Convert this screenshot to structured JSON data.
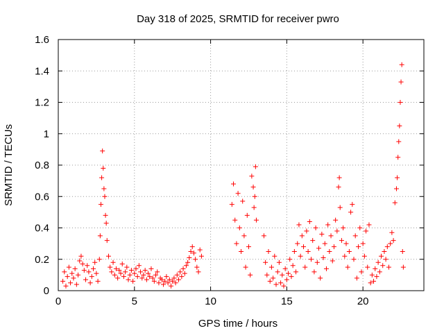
{
  "chart_data": {
    "type": "scatter",
    "title": "Day 318 of 2025, SRMTID for receiver pwro",
    "xlabel": "GPS time / hours",
    "ylabel": "SRMTID / TECUs",
    "xlim": [
      0,
      24
    ],
    "ylim": [
      0,
      1.6
    ],
    "x_ticks": [
      0,
      5,
      10,
      15,
      20
    ],
    "y_ticks": [
      0,
      0.2,
      0.4,
      0.6,
      0.8,
      1,
      1.2,
      1.4,
      1.6
    ],
    "x_tick_labels": [
      "0",
      "5",
      "10",
      "15",
      "20"
    ],
    "y_tick_labels": [
      "0",
      "0.2",
      "0.4",
      "0.6",
      "0.8",
      "1",
      "1.2",
      "1.4",
      "1.6"
    ],
    "grid": true,
    "marker": "+",
    "color": "#ff0000",
    "series": [
      {
        "name": "SRMTID",
        "points": [
          [
            0.3,
            0.06
          ],
          [
            0.4,
            0.12
          ],
          [
            0.5,
            0.03
          ],
          [
            0.6,
            0.09
          ],
          [
            0.7,
            0.15
          ],
          [
            0.8,
            0.05
          ],
          [
            0.9,
            0.11
          ],
          [
            1.0,
            0.08
          ],
          [
            1.1,
            0.14
          ],
          [
            1.2,
            0.04
          ],
          [
            1.3,
            0.1
          ],
          [
            1.4,
            0.19
          ],
          [
            1.5,
            0.22
          ],
          [
            1.6,
            0.17
          ],
          [
            1.7,
            0.13
          ],
          [
            1.8,
            0.07
          ],
          [
            1.9,
            0.16
          ],
          [
            2.0,
            0.12
          ],
          [
            2.1,
            0.05
          ],
          [
            2.2,
            0.09
          ],
          [
            2.3,
            0.14
          ],
          [
            2.4,
            0.18
          ],
          [
            2.5,
            0.11
          ],
          [
            2.6,
            0.06
          ],
          [
            2.7,
            0.2
          ],
          [
            2.75,
            0.35
          ],
          [
            2.8,
            0.55
          ],
          [
            2.85,
            0.72
          ],
          [
            2.9,
            0.89
          ],
          [
            2.95,
            0.78
          ],
          [
            3.0,
            0.65
          ],
          [
            3.05,
            0.6
          ],
          [
            3.1,
            0.48
          ],
          [
            3.15,
            0.43
          ],
          [
            3.2,
            0.32
          ],
          [
            3.3,
            0.22
          ],
          [
            3.4,
            0.15
          ],
          [
            3.5,
            0.12
          ],
          [
            3.6,
            0.18
          ],
          [
            3.7,
            0.1
          ],
          [
            3.8,
            0.14
          ],
          [
            3.9,
            0.08
          ],
          [
            4.0,
            0.13
          ],
          [
            4.1,
            0.11
          ],
          [
            4.2,
            0.17
          ],
          [
            4.3,
            0.09
          ],
          [
            4.4,
            0.12
          ],
          [
            4.5,
            0.15
          ],
          [
            4.6,
            0.07
          ],
          [
            4.7,
            0.1
          ],
          [
            4.8,
            0.13
          ],
          [
            4.9,
            0.06
          ],
          [
            5.0,
            0.11
          ],
          [
            5.1,
            0.14
          ],
          [
            5.2,
            0.09
          ],
          [
            5.3,
            0.16
          ],
          [
            5.4,
            0.12
          ],
          [
            5.5,
            0.08
          ],
          [
            5.6,
            0.1
          ],
          [
            5.7,
            0.13
          ],
          [
            5.8,
            0.07
          ],
          [
            5.9,
            0.11
          ],
          [
            6.0,
            0.09
          ],
          [
            6.1,
            0.14
          ],
          [
            6.2,
            0.08
          ],
          [
            6.3,
            0.06
          ],
          [
            6.4,
            0.1
          ],
          [
            6.5,
            0.12
          ],
          [
            6.6,
            0.05
          ],
          [
            6.7,
            0.08
          ],
          [
            6.8,
            0.07
          ],
          [
            6.9,
            0.04
          ],
          [
            7.0,
            0.06
          ],
          [
            7.1,
            0.09
          ],
          [
            7.2,
            0.05
          ],
          [
            7.3,
            0.07
          ],
          [
            7.4,
            0.03
          ],
          [
            7.5,
            0.06
          ],
          [
            7.6,
            0.08
          ],
          [
            7.7,
            0.05
          ],
          [
            7.8,
            0.1
          ],
          [
            7.9,
            0.07
          ],
          [
            8.0,
            0.12
          ],
          [
            8.1,
            0.09
          ],
          [
            8.2,
            0.14
          ],
          [
            8.3,
            0.11
          ],
          [
            8.4,
            0.16
          ],
          [
            8.5,
            0.18
          ],
          [
            8.6,
            0.21
          ],
          [
            8.7,
            0.25
          ],
          [
            8.8,
            0.28
          ],
          [
            8.9,
            0.24
          ],
          [
            9.0,
            0.2
          ],
          [
            9.1,
            0.15
          ],
          [
            9.2,
            0.12
          ],
          [
            9.3,
            0.26
          ],
          [
            9.4,
            0.22
          ],
          [
            11.4,
            0.55
          ],
          [
            11.5,
            0.68
          ],
          [
            11.6,
            0.45
          ],
          [
            11.7,
            0.3
          ],
          [
            11.8,
            0.62
          ],
          [
            11.9,
            0.4
          ],
          [
            12.0,
            0.25
          ],
          [
            12.1,
            0.57
          ],
          [
            12.2,
            0.35
          ],
          [
            12.3,
            0.15
          ],
          [
            12.4,
            0.48
          ],
          [
            12.5,
            0.28
          ],
          [
            12.6,
            0.1
          ],
          [
            12.7,
            0.73
          ],
          [
            12.8,
            0.66
          ],
          [
            12.85,
            0.53
          ],
          [
            12.9,
            0.6
          ],
          [
            12.95,
            0.79
          ],
          [
            13.0,
            0.45
          ],
          [
            13.5,
            0.35
          ],
          [
            13.6,
            0.18
          ],
          [
            13.7,
            0.1
          ],
          [
            13.8,
            0.25
          ],
          [
            13.9,
            0.06
          ],
          [
            14.0,
            0.15
          ],
          [
            14.1,
            0.08
          ],
          [
            14.2,
            0.22
          ],
          [
            14.3,
            0.04
          ],
          [
            14.4,
            0.12
          ],
          [
            14.5,
            0.18
          ],
          [
            14.6,
            0.05
          ],
          [
            14.7,
            0.1
          ],
          [
            14.8,
            0.03
          ],
          [
            14.9,
            0.14
          ],
          [
            15.0,
            0.07
          ],
          [
            15.1,
            0.11
          ],
          [
            15.2,
            0.2
          ],
          [
            15.3,
            0.09
          ],
          [
            15.4,
            0.16
          ],
          [
            15.5,
            0.25
          ],
          [
            15.6,
            0.12
          ],
          [
            15.7,
            0.3
          ],
          [
            15.8,
            0.42
          ],
          [
            15.9,
            0.22
          ],
          [
            16.0,
            0.35
          ],
          [
            16.1,
            0.28
          ],
          [
            16.2,
            0.15
          ],
          [
            16.3,
            0.38
          ],
          [
            16.4,
            0.25
          ],
          [
            16.5,
            0.44
          ],
          [
            16.6,
            0.2
          ],
          [
            16.7,
            0.32
          ],
          [
            16.8,
            0.12
          ],
          [
            16.9,
            0.4
          ],
          [
            17.0,
            0.18
          ],
          [
            17.1,
            0.27
          ],
          [
            17.2,
            0.08
          ],
          [
            17.3,
            0.36
          ],
          [
            17.4,
            0.21
          ],
          [
            17.5,
            0.3
          ],
          [
            17.6,
            0.14
          ],
          [
            17.7,
            0.42
          ],
          [
            17.8,
            0.25
          ],
          [
            17.9,
            0.35
          ],
          [
            18.0,
            0.19
          ],
          [
            18.1,
            0.28
          ],
          [
            18.2,
            0.45
          ],
          [
            18.3,
            0.38
          ],
          [
            18.4,
            0.66
          ],
          [
            18.45,
            0.72
          ],
          [
            18.5,
            0.53
          ],
          [
            18.6,
            0.32
          ],
          [
            18.7,
            0.4
          ],
          [
            18.8,
            0.22
          ],
          [
            18.9,
            0.3
          ],
          [
            19.0,
            0.15
          ],
          [
            19.1,
            0.25
          ],
          [
            19.2,
            0.5
          ],
          [
            19.3,
            0.55
          ],
          [
            19.4,
            0.2
          ],
          [
            19.5,
            0.35
          ],
          [
            19.6,
            0.08
          ],
          [
            19.7,
            0.28
          ],
          [
            19.8,
            0.4
          ],
          [
            19.9,
            0.12
          ],
          [
            20.0,
            0.3
          ],
          [
            20.1,
            0.22
          ],
          [
            20.2,
            0.38
          ],
          [
            20.3,
            0.15
          ],
          [
            20.4,
            0.42
          ],
          [
            20.5,
            0.05
          ],
          [
            20.6,
            0.1
          ],
          [
            20.7,
            0.06
          ],
          [
            20.8,
            0.14
          ],
          [
            20.9,
            0.09
          ],
          [
            21.0,
            0.18
          ],
          [
            21.1,
            0.12
          ],
          [
            21.2,
            0.22
          ],
          [
            21.3,
            0.16
          ],
          [
            21.4,
            0.25
          ],
          [
            21.5,
            0.2
          ],
          [
            21.6,
            0.28
          ],
          [
            21.7,
            0.15
          ],
          [
            21.8,
            0.3
          ],
          [
            21.9,
            0.37
          ],
          [
            22.0,
            0.32
          ],
          [
            22.1,
            0.56
          ],
          [
            22.2,
            0.65
          ],
          [
            22.25,
            0.72
          ],
          [
            22.3,
            0.85
          ],
          [
            22.35,
            0.95
          ],
          [
            22.4,
            1.05
          ],
          [
            22.45,
            1.2
          ],
          [
            22.5,
            1.33
          ],
          [
            22.55,
            1.44
          ],
          [
            22.6,
            0.25
          ],
          [
            22.65,
            0.15
          ]
        ]
      }
    ]
  }
}
